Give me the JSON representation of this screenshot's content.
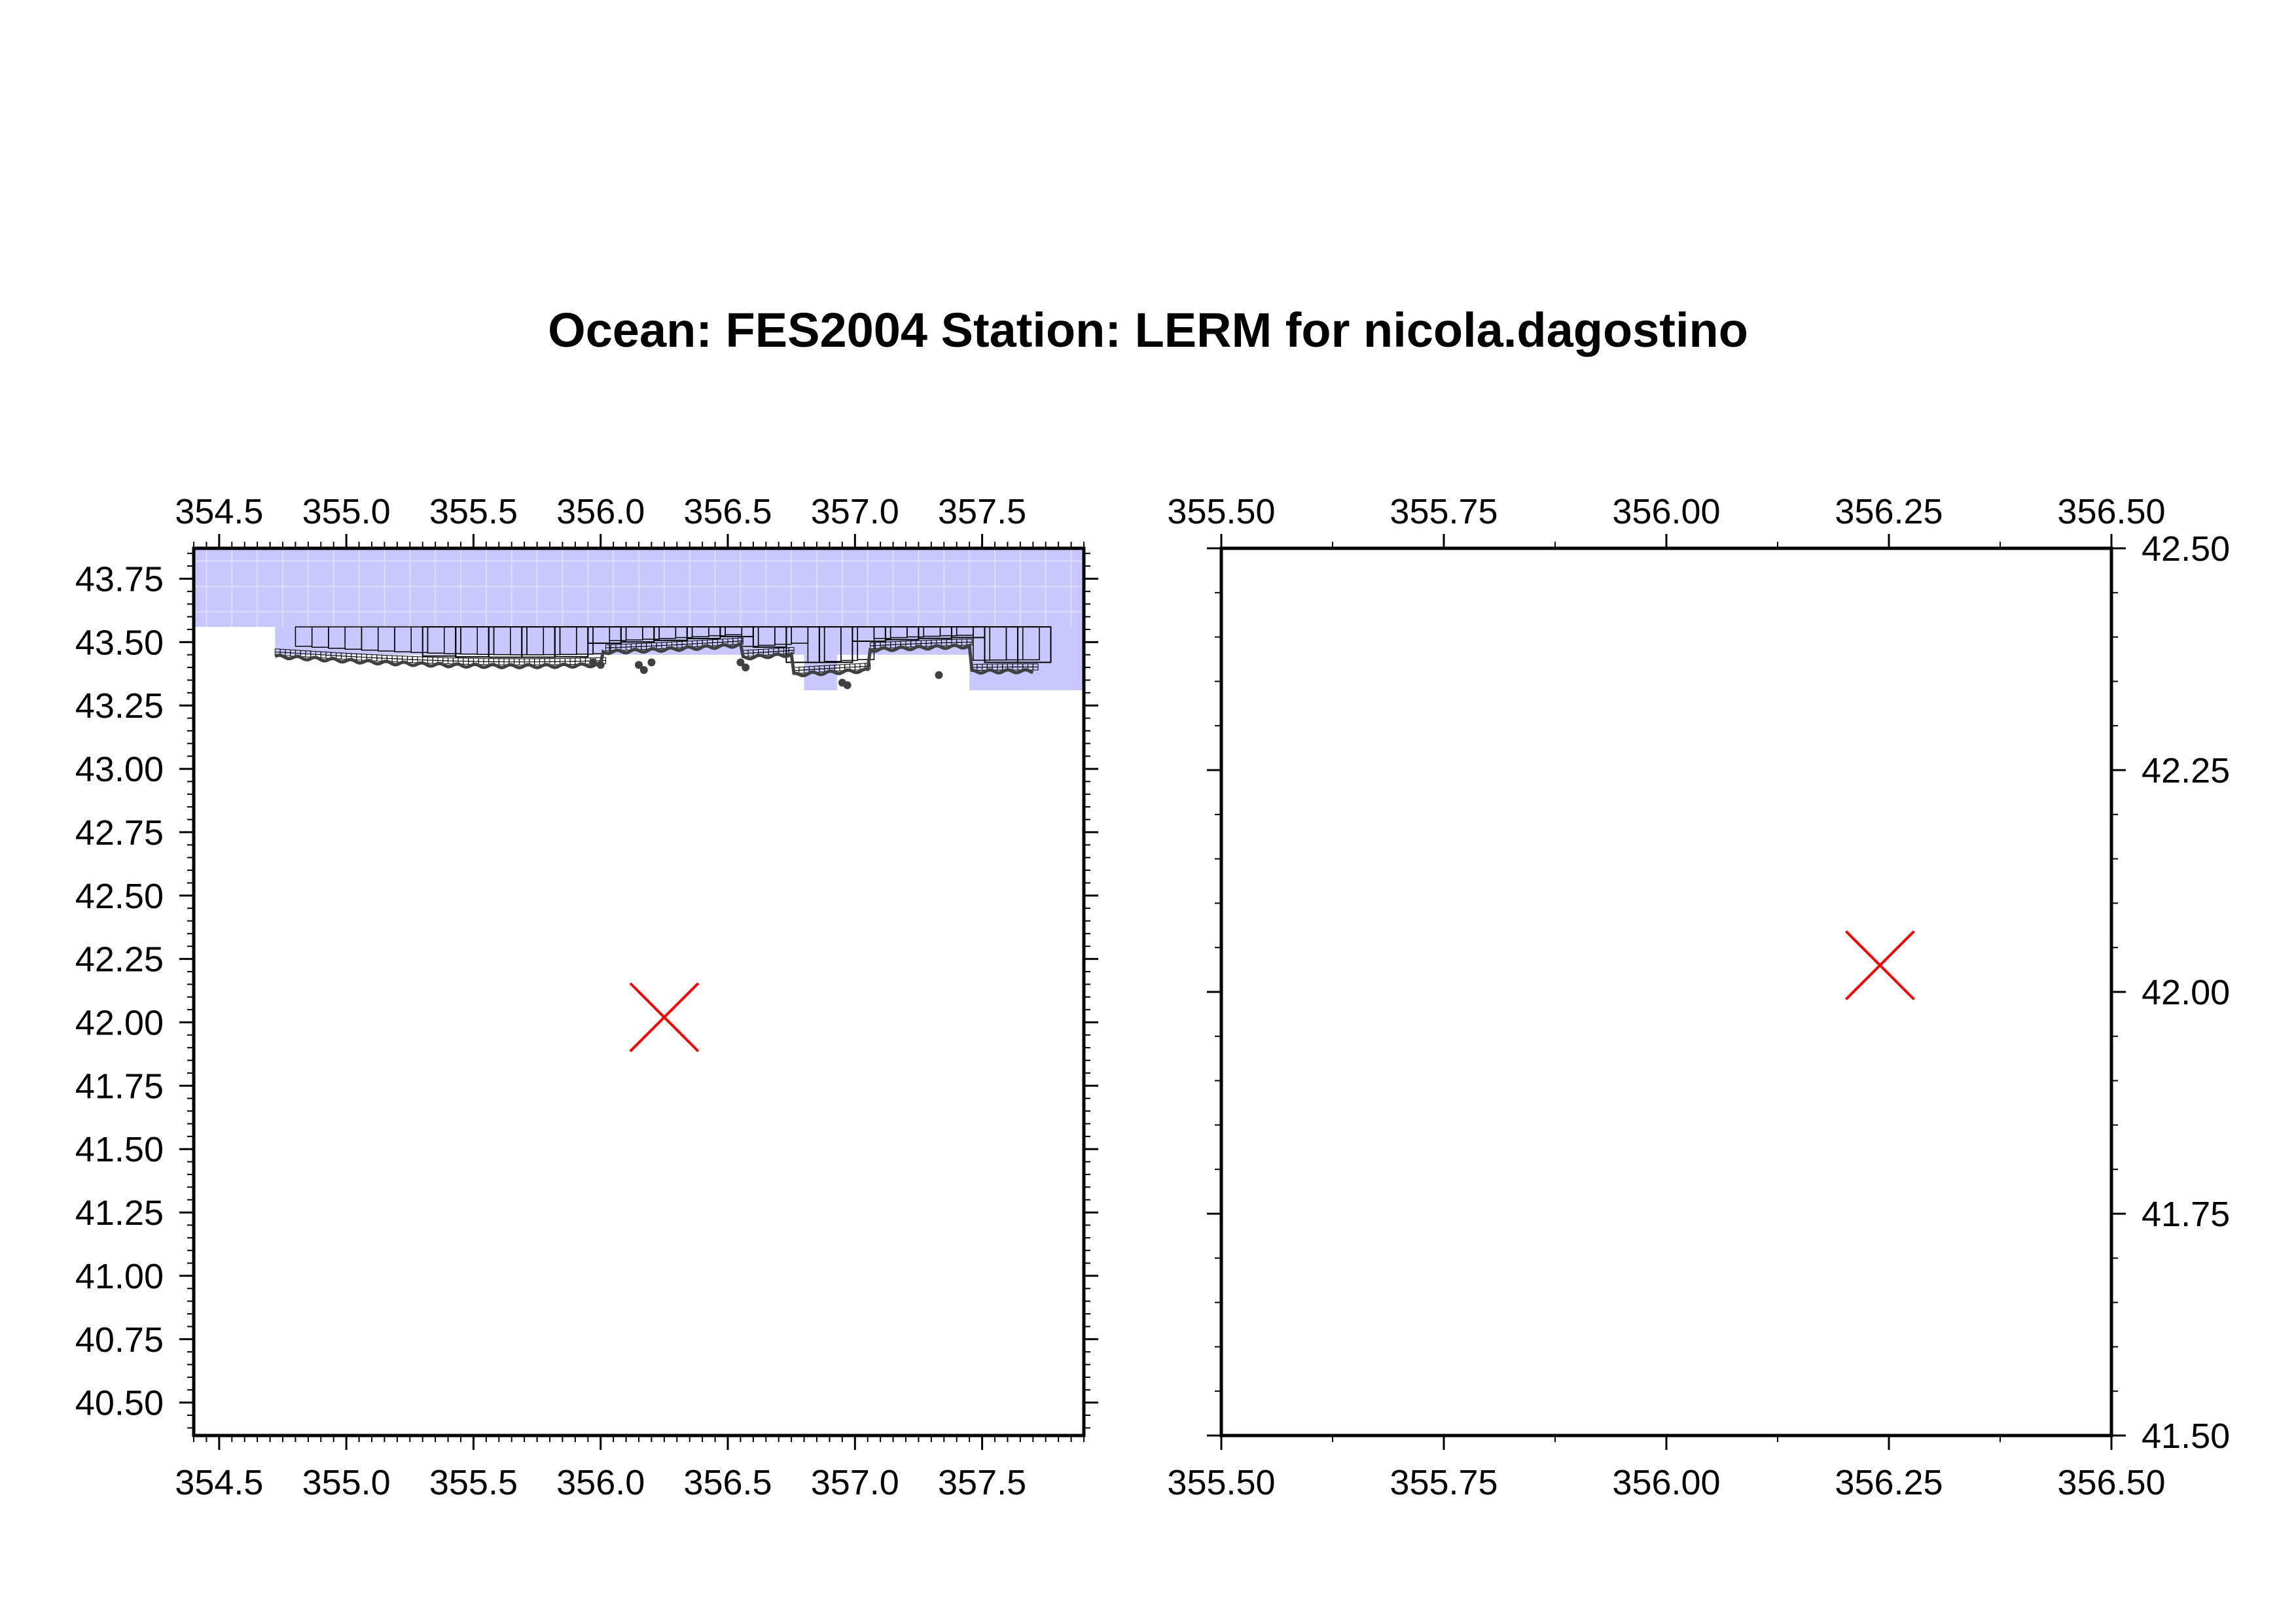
{
  "title": "Ocean: FES2004  Station: LERM  for nicola.dagostino",
  "panels": [
    {
      "id": "overview",
      "xlim": [
        354.4,
        357.9
      ],
      "ylim": [
        40.37,
        43.87
      ],
      "x_ticks": [
        "354.5",
        "355.0",
        "355.5",
        "356.0",
        "356.5",
        "357.0",
        "357.5"
      ],
      "y_ticks": [
        "40.50",
        "40.75",
        "41.00",
        "41.25",
        "41.50",
        "41.75",
        "42.00",
        "42.25",
        "42.50",
        "42.75",
        "43.00",
        "43.25",
        "43.50",
        "43.75"
      ],
      "tick_labels_top": true,
      "tick_labels_bottom": true,
      "tick_labels_left": true,
      "tick_labels_right": false,
      "ocean_fill_color": "#c8c8ff",
      "ocean_fill": [
        {
          "lon": [
            354.4,
            357.9
          ],
          "lat": [
            43.56,
            43.87
          ]
        },
        {
          "lon": [
            354.72,
            357.9
          ],
          "lat": [
            43.45,
            43.56
          ]
        },
        {
          "lon": [
            356.8,
            356.93
          ],
          "lat": [
            43.31,
            43.45
          ]
        },
        {
          "lon": [
            357.45,
            357.9
          ],
          "lat": [
            43.31,
            43.45
          ]
        },
        {
          "lon": [
            357.68,
            357.9
          ],
          "lat": [
            43.31,
            43.56
          ]
        }
      ],
      "station_marker": {
        "lon": 356.25,
        "lat": 42.02,
        "color": "#ff0000",
        "symbol": "x"
      }
    },
    {
      "id": "zoom",
      "xlim": [
        355.5,
        356.5
      ],
      "ylim": [
        41.5,
        42.5
      ],
      "x_ticks": [
        "355.50",
        "355.75",
        "356.00",
        "356.25",
        "356.50"
      ],
      "y_ticks": [
        "41.50",
        "41.75",
        "42.00",
        "42.25",
        "42.50"
      ],
      "tick_labels_top": true,
      "tick_labels_bottom": true,
      "tick_labels_left": false,
      "tick_labels_right": true,
      "station_marker": {
        "lon": 356.24,
        "lat": 42.03,
        "color": "#ff0000",
        "symbol": "x"
      }
    }
  ],
  "coastline_color": "#404040",
  "grid_line_color": "#000000"
}
